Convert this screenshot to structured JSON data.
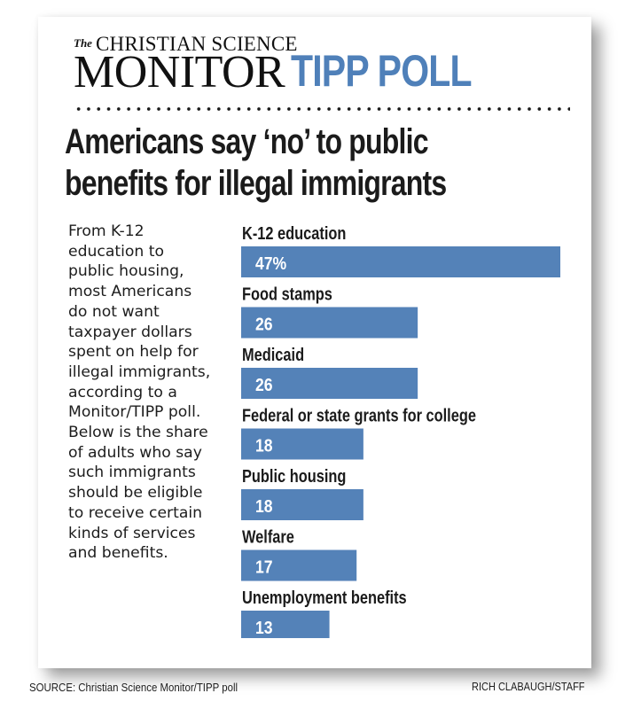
{
  "masthead": {
    "logo_the": "The",
    "logo_line1": "CHRISTIAN SCIENCE",
    "logo_line2": "MONITOR",
    "poll_name": "TIPP POLL"
  },
  "headline": {
    "line1": "Americans say ‘no’ to public",
    "line2": "benefits for illegal immigrants"
  },
  "intro_lines": [
    "From K-12",
    "education to",
    "public housing,",
    "most Americans",
    "do not want",
    "taxpayer dollars",
    "spent on help for",
    "illegal immigrants,",
    "according to a",
    "Monitor/TIPP poll.",
    "Below is the share",
    "of adults who say",
    "such immigrants",
    "should be eligible",
    "to receive certain",
    "kinds of services",
    "and benefits."
  ],
  "colors": {
    "bar": "#5482b8",
    "accent": "#4f80b9",
    "text": "#1b1b1b"
  },
  "chart_data": {
    "type": "bar",
    "orientation": "horizontal",
    "title": "Americans say ‘no’ to public benefits for illegal immigrants",
    "xlabel": "",
    "ylabel": "Share of adults who say illegal immigrants should be eligible (%)",
    "categories": [
      "K-12 education",
      "Food stamps",
      "Medicaid",
      "Federal or state grants for college",
      "Public housing",
      "Welfare",
      "Unemployment benefits"
    ],
    "values": [
      47,
      26,
      26,
      18,
      18,
      17,
      13
    ],
    "value_labels": [
      "47%",
      "26",
      "26",
      "18",
      "18",
      "17",
      "13"
    ],
    "unit": "%",
    "xlim": [
      0,
      47
    ],
    "grid": false,
    "legend": "none"
  },
  "footer": {
    "source": "SOURCE: Christian Science Monitor/TIPP poll",
    "credit": "RICH CLABAUGH/STAFF"
  }
}
